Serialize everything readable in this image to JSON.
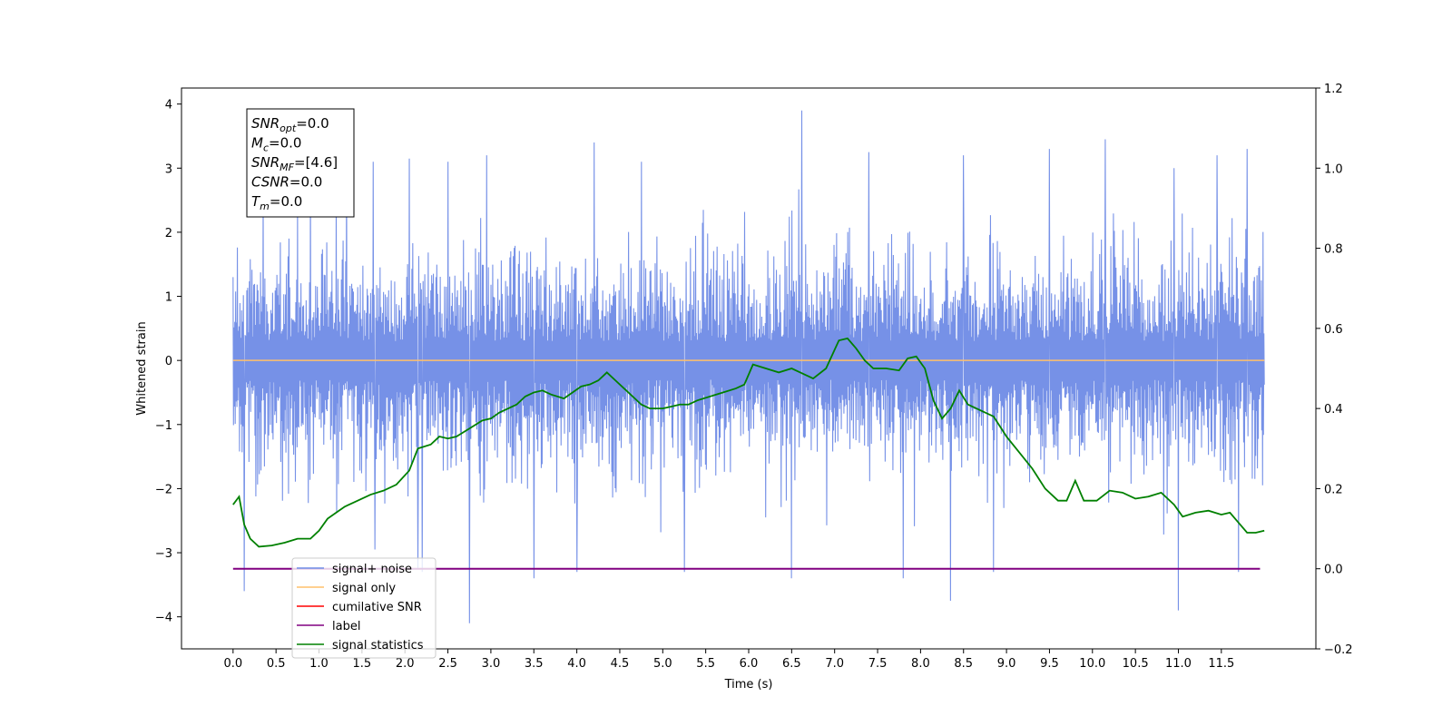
{
  "chart_data": {
    "type": "line",
    "xlabel": "Time (s)",
    "ylabel": "Whitened strain",
    "xlim": [
      -0.6,
      12.6
    ],
    "ylim": [
      -4.5,
      4.25
    ],
    "y2lim": [
      -0.2,
      1.2
    ],
    "x_ticks": [
      0.0,
      0.5,
      1.0,
      1.5,
      2.0,
      2.5,
      3.0,
      3.5,
      4.0,
      4.5,
      5.0,
      5.5,
      6.0,
      6.5,
      7.0,
      7.5,
      8.0,
      8.5,
      9.0,
      9.5,
      10.0,
      10.5,
      11.0,
      11.5
    ],
    "x_tick_labels": [
      "0.0",
      "0.5",
      "1.0",
      "1.5",
      "2.0",
      "2.5",
      "3.0",
      "3.5",
      "4.0",
      "4.5",
      "5.0",
      "5.5",
      "6.0",
      "6.5",
      "7.0",
      "7.5",
      "8.0",
      "8.5",
      "9.0",
      "9.5",
      "10.0",
      "10.5",
      "11.0",
      "11.5"
    ],
    "y_ticks": [
      -4,
      -3,
      -2,
      -1,
      0,
      1,
      2,
      3,
      4
    ],
    "y_tick_labels": [
      "−4",
      "−3",
      "−2",
      "−1",
      "0",
      "1",
      "2",
      "3",
      "4"
    ],
    "y2_ticks": [
      -0.2,
      0.0,
      0.2,
      0.4,
      0.6,
      0.8,
      1.0,
      1.2
    ],
    "y2_tick_labels": [
      "−0.2",
      "0.0",
      "0.2",
      "0.4",
      "0.6",
      "0.8",
      "1.0",
      "1.2"
    ],
    "grid": false,
    "legend_position": "lower-left",
    "noise": {
      "x_range": [
        0.0,
        12.0
      ],
      "band_upper": 1.6,
      "band_lower": -1.6,
      "spikes": [
        {
          "x": 0.13,
          "y": -3.6
        },
        {
          "x": 0.35,
          "y": 2.6
        },
        {
          "x": 0.9,
          "y": 2.9
        },
        {
          "x": 1.2,
          "y": 2.7
        },
        {
          "x": 1.32,
          "y": 3.1
        },
        {
          "x": 1.63,
          "y": 3.1
        },
        {
          "x": 1.65,
          "y": -2.95
        },
        {
          "x": 2.05,
          "y": 3.15
        },
        {
          "x": 2.15,
          "y": -3.25
        },
        {
          "x": 2.2,
          "y": -3.3
        },
        {
          "x": 2.5,
          "y": 3.1
        },
        {
          "x": 2.75,
          "y": -4.1
        },
        {
          "x": 2.95,
          "y": 3.2
        },
        {
          "x": 3.5,
          "y": -3.4
        },
        {
          "x": 4.0,
          "y": -3.3
        },
        {
          "x": 4.2,
          "y": 3.4
        },
        {
          "x": 4.75,
          "y": 3.1
        },
        {
          "x": 5.25,
          "y": -3.3
        },
        {
          "x": 6.5,
          "y": -3.4
        },
        {
          "x": 6.62,
          "y": 3.9
        },
        {
          "x": 7.4,
          "y": 3.25
        },
        {
          "x": 7.8,
          "y": -3.4
        },
        {
          "x": 8.35,
          "y": -3.75
        },
        {
          "x": 8.5,
          "y": 3.2
        },
        {
          "x": 8.85,
          "y": -3.3
        },
        {
          "x": 9.5,
          "y": 3.3
        },
        {
          "x": 10.15,
          "y": 3.45
        },
        {
          "x": 11.0,
          "y": -3.9
        },
        {
          "x": 11.45,
          "y": 3.2
        },
        {
          "x": 11.8,
          "y": 3.3
        },
        {
          "x": 11.7,
          "y": -3.3
        },
        {
          "x": 10.95,
          "y": 3.0
        }
      ]
    },
    "series": [
      {
        "name": "signal+ noise",
        "color": "#6f8be6",
        "legend_label": "signal+ noise"
      },
      {
        "name": "signal only",
        "color": "#ffc06b",
        "legend_label": "signal only",
        "x": [
          0.0,
          12.0
        ],
        "y": [
          0.0,
          0.0
        ]
      },
      {
        "name": "cumilative SNR",
        "color": "#ff0000",
        "legend_label": "cumilative SNR"
      },
      {
        "name": "label",
        "color": "#800080",
        "legend_label": "label",
        "axis": "right",
        "x": [
          0.0,
          11.95
        ],
        "y": [
          0.0,
          0.0
        ]
      },
      {
        "name": "signal statistics",
        "color": "#008000",
        "legend_label": "signal statistics",
        "axis": "right",
        "x": [
          0.0,
          0.07,
          0.13,
          0.2,
          0.3,
          0.45,
          0.6,
          0.75,
          0.9,
          1.0,
          1.1,
          1.2,
          1.3,
          1.45,
          1.6,
          1.75,
          1.9,
          2.05,
          2.15,
          2.3,
          2.4,
          2.5,
          2.6,
          2.75,
          2.9,
          3.0,
          3.1,
          3.2,
          3.3,
          3.4,
          3.5,
          3.6,
          3.7,
          3.85,
          3.95,
          4.05,
          4.15,
          4.25,
          4.35,
          4.45,
          4.55,
          4.65,
          4.75,
          4.85,
          5.0,
          5.1,
          5.2,
          5.3,
          5.4,
          5.55,
          5.7,
          5.85,
          5.95,
          6.05,
          6.2,
          6.35,
          6.5,
          6.6,
          6.75,
          6.9,
          7.05,
          7.15,
          7.25,
          7.35,
          7.45,
          7.6,
          7.75,
          7.85,
          7.95,
          8.05,
          8.15,
          8.25,
          8.35,
          8.45,
          8.55,
          8.7,
          8.85,
          9.0,
          9.15,
          9.3,
          9.45,
          9.6,
          9.7,
          9.8,
          9.9,
          10.05,
          10.2,
          10.35,
          10.5,
          10.65,
          10.8,
          10.95,
          11.05,
          11.2,
          11.35,
          11.5,
          11.6,
          11.7,
          11.8,
          11.9,
          12.0
        ],
        "y": [
          0.16,
          0.18,
          0.11,
          0.075,
          0.055,
          0.058,
          0.065,
          0.075,
          0.075,
          0.095,
          0.125,
          0.14,
          0.155,
          0.17,
          0.185,
          0.195,
          0.21,
          0.245,
          0.3,
          0.31,
          0.33,
          0.325,
          0.33,
          0.35,
          0.37,
          0.375,
          0.39,
          0.4,
          0.41,
          0.43,
          0.44,
          0.445,
          0.435,
          0.425,
          0.44,
          0.455,
          0.46,
          0.47,
          0.49,
          0.47,
          0.45,
          0.43,
          0.41,
          0.4,
          0.4,
          0.405,
          0.41,
          0.41,
          0.42,
          0.43,
          0.44,
          0.45,
          0.46,
          0.51,
          0.5,
          0.49,
          0.5,
          0.49,
          0.475,
          0.5,
          0.57,
          0.575,
          0.55,
          0.52,
          0.5,
          0.5,
          0.495,
          0.525,
          0.53,
          0.5,
          0.42,
          0.375,
          0.4,
          0.445,
          0.41,
          0.395,
          0.38,
          0.33,
          0.29,
          0.25,
          0.2,
          0.17,
          0.17,
          0.22,
          0.17,
          0.17,
          0.195,
          0.19,
          0.175,
          0.18,
          0.19,
          0.16,
          0.13,
          0.14,
          0.145,
          0.135,
          0.14,
          0.115,
          0.09,
          0.09,
          0.095
        ]
      }
    ],
    "annotation": {
      "lines": [
        {
          "main": "SNR",
          "sub": "opt",
          "rest": "=0.0"
        },
        {
          "main": "M",
          "sub": "c",
          "rest": "=0.0"
        },
        {
          "main": "SNR",
          "sub": "MF",
          "rest": "=[4.6]"
        },
        {
          "main": "CSNR",
          "sub": "",
          "rest": "=0.0"
        },
        {
          "main": "T",
          "sub": "m",
          "rest": "=0.0"
        }
      ]
    }
  }
}
